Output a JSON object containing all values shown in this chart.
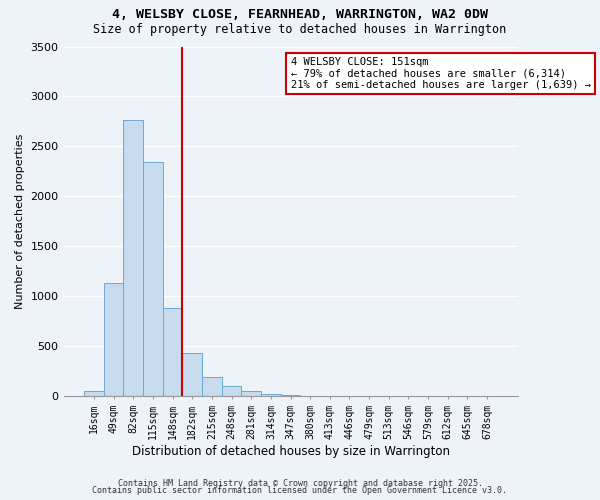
{
  "title": "4, WELSBY CLOSE, FEARNHEAD, WARRINGTON, WA2 0DW",
  "subtitle": "Size of property relative to detached houses in Warrington",
  "xlabel": "Distribution of detached houses by size in Warrington",
  "ylabel": "Number of detached properties",
  "bar_color": "#c8daee",
  "bar_edge_color": "#6aaad4",
  "categories": [
    "16sqm",
    "49sqm",
    "82sqm",
    "115sqm",
    "148sqm",
    "182sqm",
    "215sqm",
    "248sqm",
    "281sqm",
    "314sqm",
    "347sqm",
    "380sqm",
    "413sqm",
    "446sqm",
    "479sqm",
    "513sqm",
    "546sqm",
    "579sqm",
    "612sqm",
    "645sqm",
    "678sqm"
  ],
  "values": [
    50,
    1130,
    2760,
    2340,
    880,
    430,
    190,
    100,
    55,
    25,
    10,
    5,
    5,
    2,
    2,
    1,
    1,
    0,
    0,
    0,
    5
  ],
  "ylim": [
    0,
    3500
  ],
  "yticks": [
    0,
    500,
    1000,
    1500,
    2000,
    2500,
    3000,
    3500
  ],
  "vline_x": 4.5,
  "vline_color": "#cc0000",
  "annotation_title": "4 WELSBY CLOSE: 151sqm",
  "annotation_line1": "← 79% of detached houses are smaller (6,314)",
  "annotation_line2": "21% of semi-detached houses are larger (1,639) →",
  "annotation_box_color": "#ffffff",
  "annotation_box_edge": "#cc0000",
  "footer1": "Contains HM Land Registry data © Crown copyright and database right 2025.",
  "footer2": "Contains public sector information licensed under the Open Government Licence v3.0.",
  "background_color": "#eef2f9",
  "grid_color": "#ffffff"
}
